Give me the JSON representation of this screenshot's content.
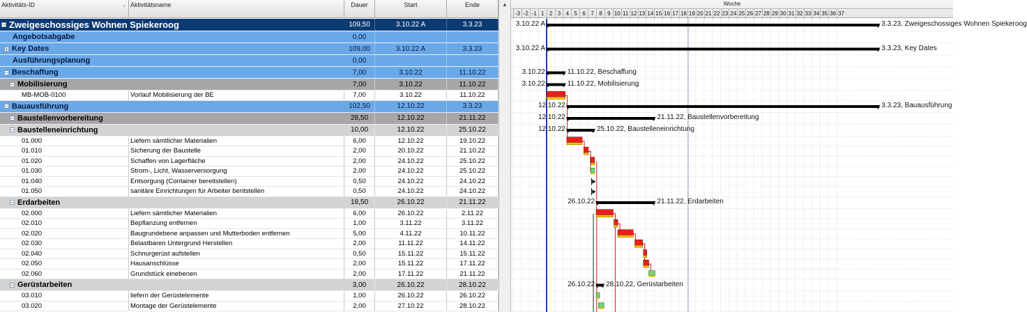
{
  "columns": {
    "id": "Aktivitäts-ID",
    "name": "Aktivitätsname",
    "duration": "Dauer",
    "start": "Start",
    "end": "Ende"
  },
  "timescale": {
    "unit_label": "Woche",
    "weeks": [
      "-3",
      "-2",
      "-1",
      "1",
      "2",
      "3",
      "4",
      "5",
      "6",
      "7",
      "8",
      "9",
      "10",
      "11",
      "12",
      "13",
      "14",
      "15",
      "16",
      "17",
      "18",
      "19",
      "20",
      "21",
      "22",
      "23",
      "24",
      "25",
      "26",
      "27",
      "28",
      "29",
      "30",
      "31",
      "32",
      "33",
      "34",
      "35",
      "36",
      "37"
    ]
  },
  "rows": [
    {
      "type": "wbs",
      "level": 0,
      "id": "",
      "name": "Zweigeschossiges Wohnen Spiekeroog",
      "duration": "109,50",
      "start": "3.10.22 A",
      "end": "3.3.23",
      "toggle": "−",
      "bar": {
        "kind": "summary",
        "s": 0,
        "e": 21.5
      },
      "labels": {
        "left": "3.10.22 A",
        "right": "3.3.23, Zweigeschossiges Wohnen Spiekeroog"
      }
    },
    {
      "type": "wbs",
      "level": 1,
      "id": "",
      "name": "Angebotsabgabe",
      "duration": "0,00",
      "start": "",
      "end": "",
      "toggle": ""
    },
    {
      "type": "wbs",
      "level": 1,
      "id": "",
      "name": "Key Dates",
      "duration": "109,00",
      "start": "3.10.22 A",
      "end": "3.3.23",
      "toggle": "+",
      "bar": {
        "kind": "summary",
        "s": 0,
        "e": 21.5
      },
      "labels": {
        "left": "3.10.22 A",
        "right": "3.3.23, Key Dates"
      }
    },
    {
      "type": "wbs",
      "level": 1,
      "id": "",
      "name": "Ausführungsplanung",
      "duration": "0,00",
      "start": "",
      "end": "",
      "toggle": ""
    },
    {
      "type": "wbs",
      "level": 1,
      "id": "",
      "name": "Beschaffung",
      "duration": "7,00",
      "start": "3.10.22",
      "end": "11.10.22",
      "toggle": "−",
      "bar": {
        "kind": "summary",
        "s": 0,
        "e": 1.2
      },
      "labels": {
        "left": "3.10.22",
        "right": "11.10.22, Beschaffung"
      }
    },
    {
      "type": "wbs",
      "level": 2,
      "id": "",
      "name": "Mobilisierung",
      "duration": "7,00",
      "start": "3.10.22",
      "end": "11.10.22",
      "toggle": "−",
      "bar": {
        "kind": "summary",
        "s": 0,
        "e": 1.2
      },
      "labels": {
        "left": "3.10.22",
        "right": "11.10.22, Mobilisierung"
      }
    },
    {
      "type": "act",
      "id": "MB-MOB-0100",
      "name": "Vorlauf Mobilisierung der BE",
      "duration": "7,00",
      "start": "3.10.22",
      "end": "11.10.22",
      "bar": {
        "kind": "critical",
        "s": 0,
        "e": 1.2
      }
    },
    {
      "type": "wbs",
      "level": 1,
      "id": "",
      "name": "Bauausführung",
      "duration": "102,50",
      "start": "12.10.22",
      "end": "3.3.23",
      "toggle": "−",
      "bar": {
        "kind": "summary",
        "s": 1.3,
        "e": 21.5
      },
      "labels": {
        "left": "12.10.22",
        "right": "3.3.23, Bauausführung"
      }
    },
    {
      "type": "wbs",
      "level": 2,
      "id": "",
      "name": "Baustellenvorbereitung",
      "duration": "28,50",
      "start": "12.10.22",
      "end": "21.11.22",
      "toggle": "−",
      "bar": {
        "kind": "summary",
        "s": 1.3,
        "e": 7
      },
      "labels": {
        "left": "12.10.22",
        "right": "21.11.22, Baustellenvorbereitung"
      }
    },
    {
      "type": "wbs",
      "level": 3,
      "id": "",
      "name": "Baustelleneinrichtung",
      "duration": "10,00",
      "start": "12.10.22",
      "end": "25.10.22",
      "toggle": "−",
      "bar": {
        "kind": "summary",
        "s": 1.3,
        "e": 3.1
      },
      "labels": {
        "left": "12.10.22",
        "right": "25.10.22, Baustelleneinrichtung"
      }
    },
    {
      "type": "act",
      "id": "01.000",
      "name": "Liefern sämtlicher Materialien",
      "duration": "6,00",
      "start": "12.10.22",
      "end": "19.10.22",
      "bar": {
        "kind": "critical",
        "s": 1.3,
        "e": 2.3
      }
    },
    {
      "type": "act",
      "id": "01.010",
      "name": "Sicherung der Baustelle",
      "duration": "2,00",
      "start": "20.10.22",
      "end": "21.10.22",
      "bar": {
        "kind": "critical",
        "s": 2.4,
        "e": 2.7
      }
    },
    {
      "type": "act",
      "id": "01.020",
      "name": "Schaffen von Lagerfläche",
      "duration": "2,00",
      "start": "24.10.22",
      "end": "25.10.22",
      "bar": {
        "kind": "critical",
        "s": 2.85,
        "e": 3.1
      }
    },
    {
      "type": "act",
      "id": "01.030",
      "name": "Strom-, Licht, Wasserversorgung",
      "duration": "2,00",
      "start": "24.10.22",
      "end": "25.10.22",
      "bar": {
        "kind": "normal",
        "s": 2.85,
        "e": 3.1
      }
    },
    {
      "type": "act",
      "id": "01.040",
      "name": "Entsorgung (Container bereitstellen)",
      "duration": "0,50",
      "start": "24.10.22",
      "end": "24.10.22",
      "bar": {
        "kind": "milestone",
        "s": 2.9,
        "e": 3.0
      }
    },
    {
      "type": "act",
      "id": "01.050",
      "name": "sanitäre Einrichtungen für Arbeiter beritstellen",
      "duration": "0,50",
      "start": "24.10.22",
      "end": "24.10.22",
      "bar": {
        "kind": "milestone",
        "s": 2.9,
        "e": 3.0
      }
    },
    {
      "type": "wbs",
      "level": 3,
      "id": "",
      "name": "Erdarbeiten",
      "duration": "18,50",
      "start": "26.10.22",
      "end": "21.11.22",
      "toggle": "−",
      "bar": {
        "kind": "summary",
        "s": 3.2,
        "e": 7
      },
      "labels": {
        "left": "26.10.22",
        "right": "21.11.22, Erdarbeiten"
      }
    },
    {
      "type": "act",
      "id": "02.000",
      "name": "Liefern sämtlicher Materialien",
      "duration": "6,00",
      "start": "26.10.22",
      "end": "2.11.22",
      "bar": {
        "kind": "critical",
        "s": 3.2,
        "e": 4.3
      }
    },
    {
      "type": "act",
      "id": "02.010",
      "name": "Bepflanzung entfernen",
      "duration": "1,00",
      "start": "3.11.22",
      "end": "3.11.22",
      "bar": {
        "kind": "critical",
        "s": 4.35,
        "e": 4.6
      }
    },
    {
      "type": "act",
      "id": "02.020",
      "name": "Baugrundebene anpassen und Mutterboden entfernen",
      "duration": "5,00",
      "start": "4.11.22",
      "end": "10.11.22",
      "bar": {
        "kind": "critical",
        "s": 4.6,
        "e": 5.6
      }
    },
    {
      "type": "act",
      "id": "02.030",
      "name": "Belastbaren Untergrund Herstellen",
      "duration": "2,00",
      "start": "11.11.22",
      "end": "14.11.22",
      "bar": {
        "kind": "critical",
        "s": 5.7,
        "e": 6.2
      }
    },
    {
      "type": "act",
      "id": "02.040",
      "name": "Schnurgerüst aufstellen",
      "duration": "0,50",
      "start": "15.11.22",
      "end": "15.11.22",
      "bar": {
        "kind": "critical",
        "s": 6.25,
        "e": 6.4
      }
    },
    {
      "type": "act",
      "id": "02.050",
      "name": "Hausanschlüsse",
      "duration": "2,00",
      "start": "15.11.22",
      "end": "17.11.22",
      "bar": {
        "kind": "critical",
        "s": 6.25,
        "e": 6.6
      }
    },
    {
      "type": "act",
      "id": "02.060",
      "name": "Grundstück einebenen",
      "duration": "2,00",
      "start": "17.11.22",
      "end": "21.11.22",
      "bar": {
        "kind": "normal",
        "s": 6.6,
        "e": 7.0
      }
    },
    {
      "type": "wbs",
      "level": 3,
      "id": "",
      "name": "Gerüstarbeiten",
      "duration": "3,00",
      "start": "26.10.22",
      "end": "28.10.22",
      "toggle": "−",
      "bar": {
        "kind": "summary",
        "s": 3.2,
        "e": 3.7
      },
      "labels": {
        "left": "26.10.22",
        "right": "28.10.22, Gerüstarbeiten"
      }
    },
    {
      "type": "act",
      "id": "03.010",
      "name": "liefern der Gerüstelemente",
      "duration": "1,00",
      "start": "26.10.22",
      "end": "26.10.22",
      "bar": {
        "kind": "normal",
        "s": 3.2,
        "e": 3.35
      }
    },
    {
      "type": "act",
      "id": "03.020",
      "name": "Montage der Gerüstelemente",
      "duration": "2,00",
      "start": "27.10.22",
      "end": "28.10.22",
      "bar": {
        "kind": "normal",
        "s": 3.35,
        "e": 3.7
      }
    }
  ],
  "colors": {
    "wbs0": "#0c3a73",
    "wbs1": "#6aa8e8",
    "wbs2": "#a7a7a7",
    "wbs3": "#d3d3d3",
    "critical_bar": "#e8201c",
    "critical_base": "#f5c400",
    "normal_bar": "#7ad37a",
    "data_date_line": "#2535a8",
    "relationship": "#d21c1c"
  }
}
